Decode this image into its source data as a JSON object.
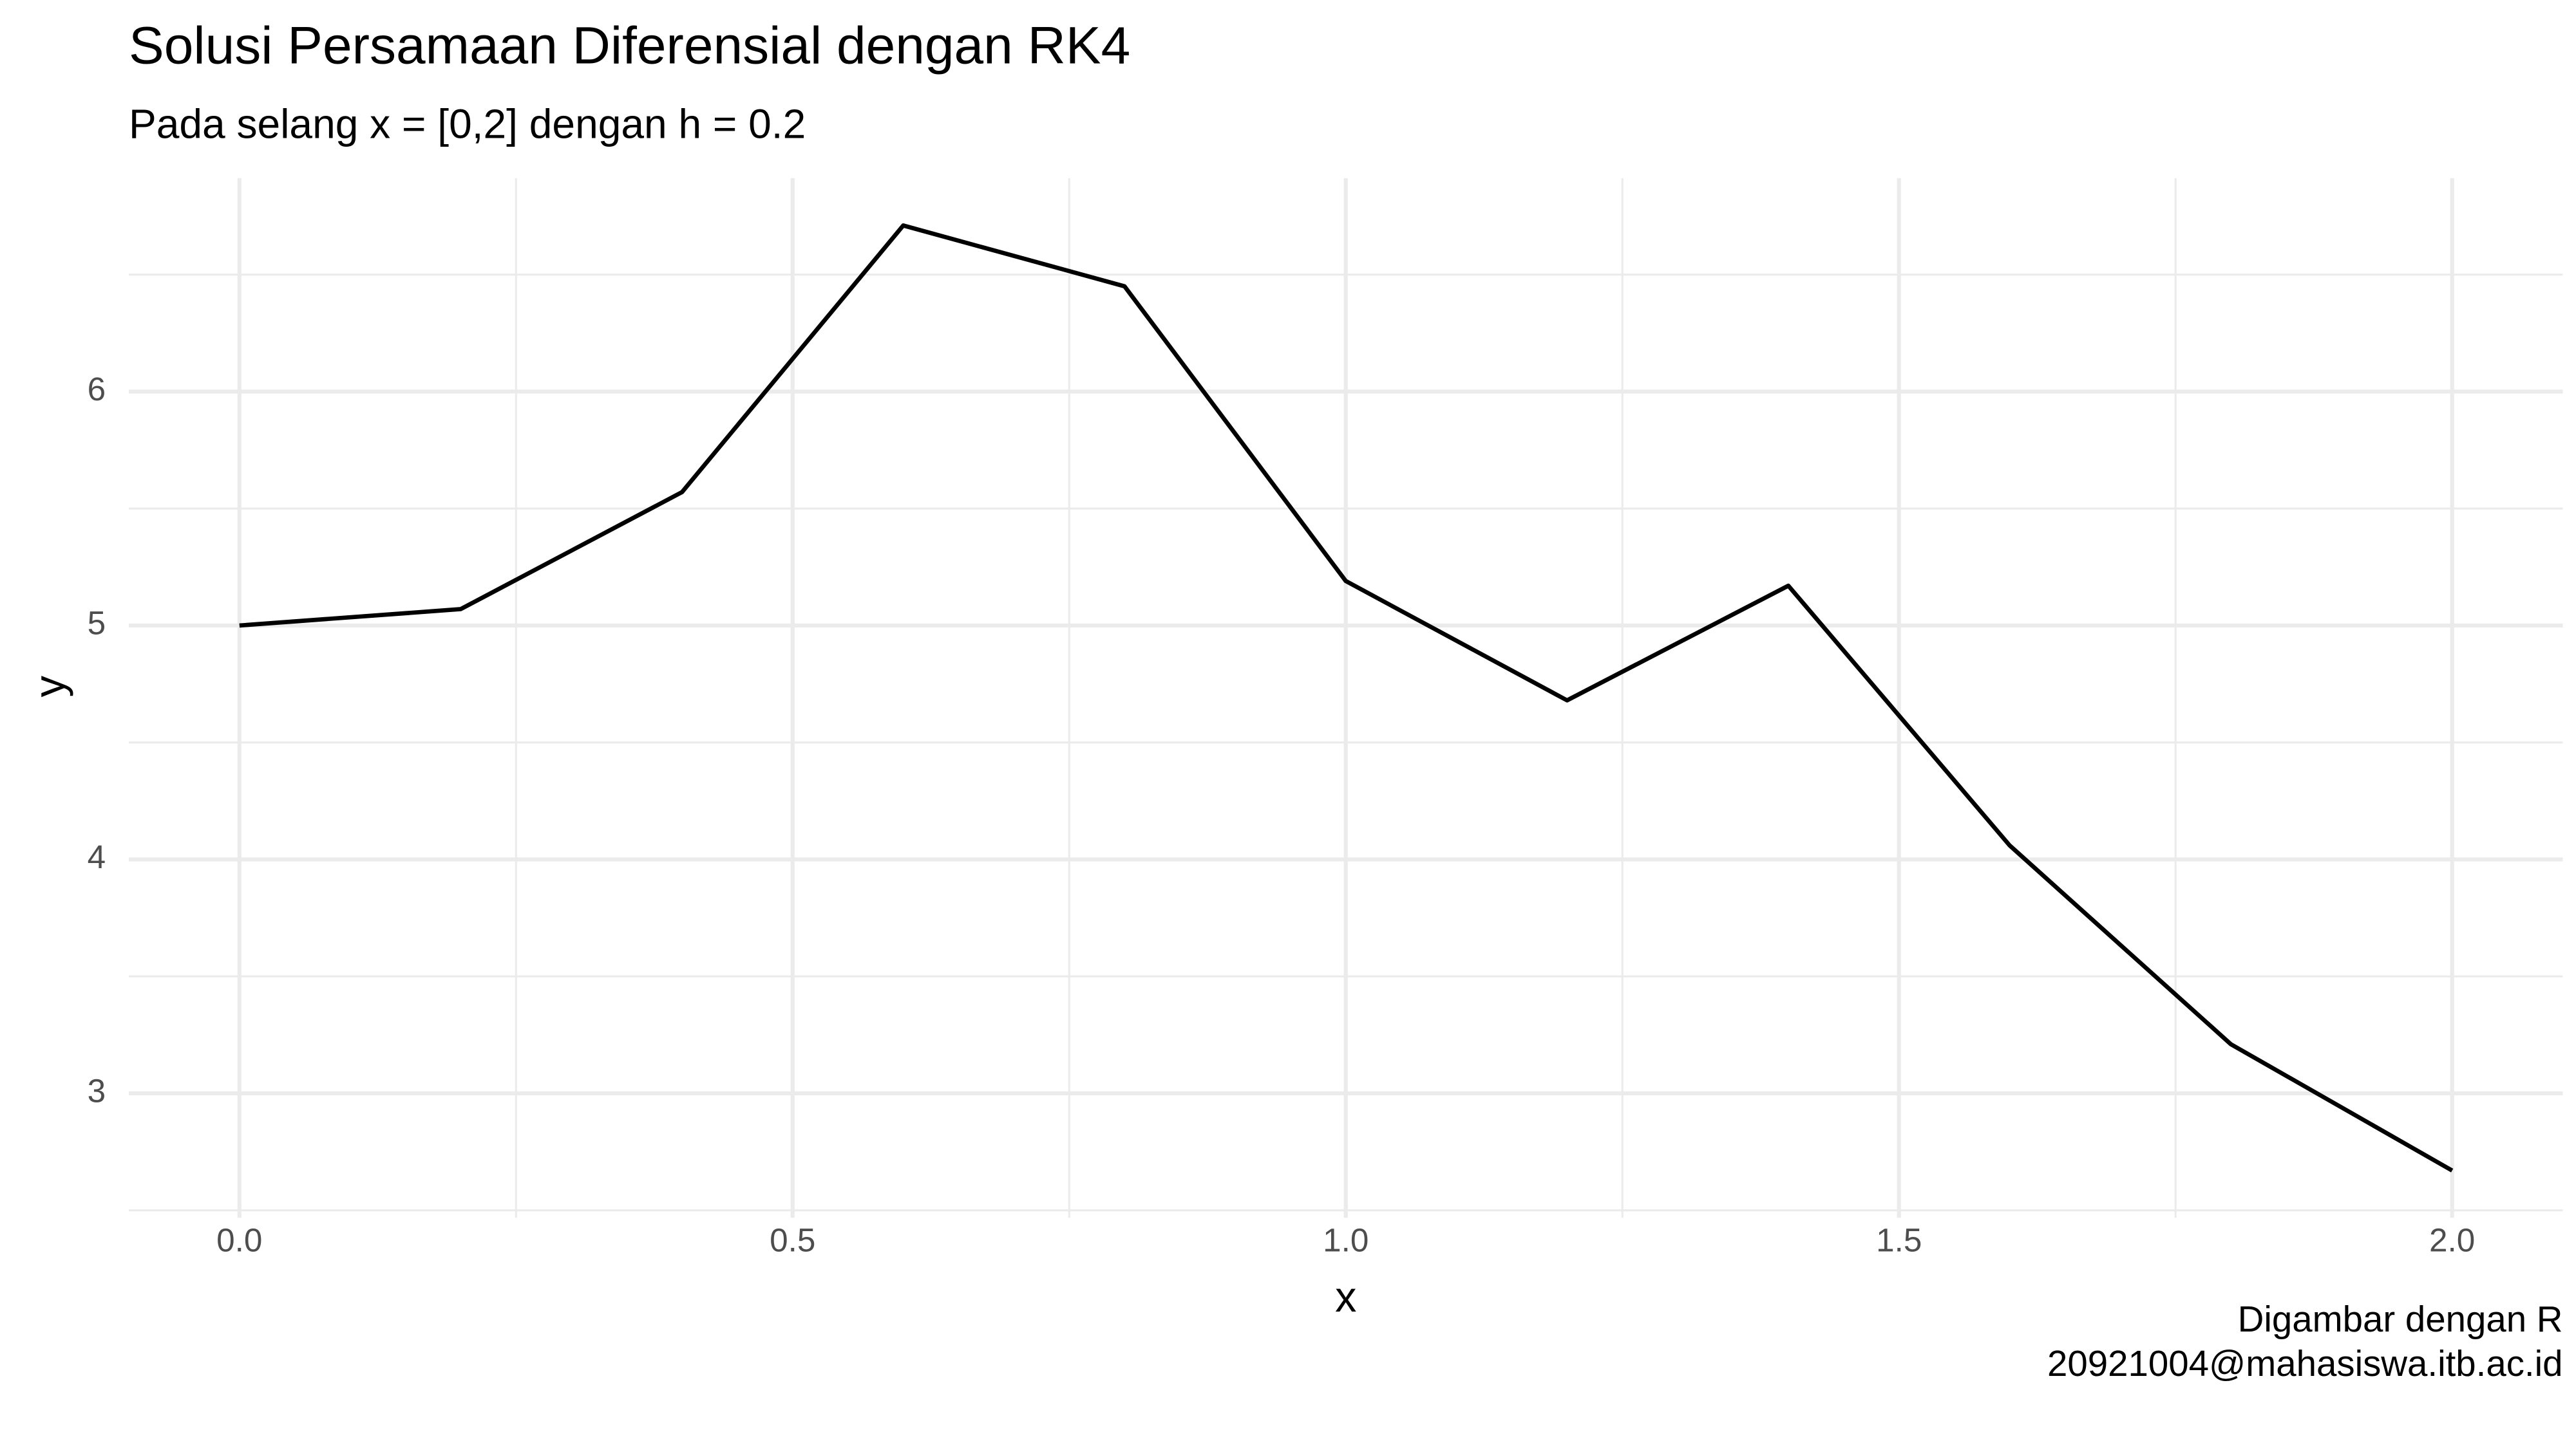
{
  "chart_data": {
    "type": "line",
    "title": "Solusi Persamaan Diferensial dengan RK4",
    "subtitle": "Pada selang x = [0,2] dengan h = 0.2",
    "x_label": "x",
    "y_label": "y",
    "caption": [
      "Digambar dengan R",
      "20921004@mahasiswa.itb.ac.id"
    ],
    "x": [
      0,
      0.2,
      0.4,
      0.6,
      0.8,
      1.0,
      1.2,
      1.4,
      1.6,
      1.8,
      2.0
    ],
    "series": [
      {
        "name": "y",
        "color": "#000000",
        "values": [
          5.0,
          5.07,
          5.57,
          6.71,
          6.45,
          5.19,
          4.68,
          5.17,
          4.06,
          3.21,
          2.67
        ]
      }
    ],
    "xlim": [
      -0.1,
      2.1
    ],
    "ylim": [
      2.468,
      6.912
    ],
    "xticks": [
      {
        "value": 0,
        "label": "0.0"
      },
      0.5,
      {
        "value": 1,
        "label": "1.0"
      },
      1.5,
      {
        "value": 2,
        "label": "2.0"
      }
    ],
    "yticks": [
      3,
      4,
      5,
      6
    ],
    "x_minor_ticks": [
      0.25,
      0.75,
      1.25,
      1.75
    ],
    "y_minor_ticks": [
      2.5,
      3.5,
      4.5,
      5.5,
      6.5
    ],
    "grid": true
  }
}
